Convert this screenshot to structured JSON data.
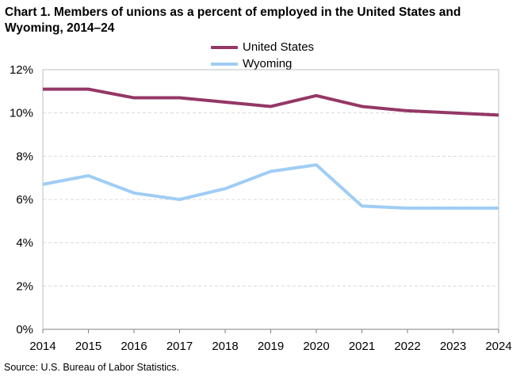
{
  "title": "Chart 1. Members of unions as a percent of employed  in the United States and Wyoming, 2014–24",
  "source": "Source:  U.S. Bureau  of Labor Statistics.",
  "colors": {
    "united_states": "#943766",
    "wyoming": "#9fcdf5",
    "grid": "#d9d9d9",
    "frame": "#bfbfbf"
  },
  "chart_data": {
    "type": "line",
    "title": "Chart 1. Members of unions as a percent of employed  in the United States and Wyoming, 2014–24",
    "xlabel": "",
    "ylabel": "",
    "x": [
      "2014",
      "2015",
      "2016",
      "2017",
      "2018",
      "2019",
      "2020",
      "2021",
      "2022",
      "2023",
      "2024"
    ],
    "ylim": [
      0,
      12
    ],
    "yticks": [
      0,
      2,
      4,
      6,
      8,
      10,
      12
    ],
    "ytick_labels": [
      "0%",
      "2%",
      "4%",
      "6%",
      "8%",
      "10%",
      "12%"
    ],
    "grid": true,
    "legend_position": "top-center",
    "series": [
      {
        "name": "United States",
        "values": [
          11.1,
          11.1,
          10.7,
          10.7,
          10.5,
          10.3,
          10.8,
          10.3,
          10.1,
          10.0,
          9.9
        ]
      },
      {
        "name": "Wyoming",
        "values": [
          6.7,
          7.1,
          6.3,
          6.0,
          6.5,
          7.3,
          7.6,
          5.7,
          5.6,
          5.6,
          5.6
        ]
      }
    ]
  }
}
